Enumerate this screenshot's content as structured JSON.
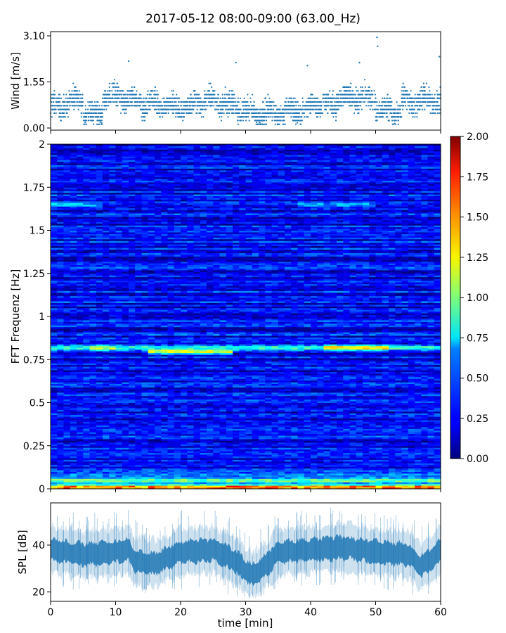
{
  "title": "2017-05-12 08:00-09:00 (63.00_Hz)",
  "chart_data": [
    {
      "type": "scatter",
      "panel": "wind",
      "ylabel": "Wind [m/s]",
      "ylim": [
        0,
        3.1
      ],
      "yticks": [
        0.0,
        1.55,
        3.1
      ],
      "ytick_labels": [
        "0.00",
        "1.55",
        "3.10"
      ],
      "xlim": [
        0,
        60
      ],
      "color": "#1f77b4",
      "segments": [
        {
          "x0": 0,
          "x1": 2,
          "mean": 0.7
        },
        {
          "x0": 2,
          "x1": 5,
          "mean": 0.9
        },
        {
          "x0": 5,
          "x1": 8,
          "mean": 0.5
        },
        {
          "x0": 8,
          "x1": 12,
          "mean": 1.0
        },
        {
          "x0": 12,
          "x1": 14,
          "mean": 0.9
        },
        {
          "x0": 14,
          "x1": 18,
          "mean": 0.8
        },
        {
          "x0": 18,
          "x1": 22,
          "mean": 0.7
        },
        {
          "x0": 22,
          "x1": 27,
          "mean": 0.9
        },
        {
          "x0": 27,
          "x1": 30,
          "mean": 0.7
        },
        {
          "x0": 30,
          "x1": 36,
          "mean": 0.5
        },
        {
          "x0": 36,
          "x1": 40,
          "mean": 0.6
        },
        {
          "x0": 40,
          "x1": 44,
          "mean": 0.8
        },
        {
          "x0": 44,
          "x1": 50,
          "mean": 1.0
        },
        {
          "x0": 50,
          "x1": 54,
          "mean": 0.6
        },
        {
          "x0": 54,
          "x1": 60,
          "mean": 0.9
        }
      ],
      "peaks": [
        {
          "x": 12.0,
          "y": 2.25
        },
        {
          "x": 28.5,
          "y": 2.2
        },
        {
          "x": 39.5,
          "y": 2.1
        },
        {
          "x": 47.5,
          "y": 2.2
        },
        {
          "x": 50.2,
          "y": 3.05
        },
        {
          "x": 50.3,
          "y": 2.75
        },
        {
          "x": 59.8,
          "y": 2.4
        }
      ]
    },
    {
      "type": "heatmap",
      "panel": "spectrogram",
      "ylabel": "FFT Frequenz [Hz]",
      "ylim": [
        0,
        2
      ],
      "yticks": [
        0,
        0.25,
        0.5,
        0.75,
        1,
        1.25,
        1.5,
        1.75,
        2
      ],
      "ytick_labels": [
        "0",
        "0.25",
        "0.5",
        "0.75",
        "1",
        "1.25",
        "1.5",
        "1.75",
        "2"
      ],
      "xlim": [
        0,
        60
      ],
      "colormap": "jet",
      "clim": [
        0,
        2
      ],
      "colorbar_ticks": [
        0,
        0.25,
        0.5,
        0.75,
        1,
        1.25,
        1.5,
        1.75,
        2
      ],
      "colorbar_tick_labels": [
        "0.00",
        "0.25",
        "0.50",
        "0.75",
        "1.00",
        "1.25",
        "1.50",
        "1.75",
        "2.00"
      ],
      "background_level": 0.25,
      "bands": [
        {
          "freq": 0.82,
          "x0": 0,
          "x1": 60,
          "level": 0.95
        },
        {
          "freq": 0.8,
          "x0": 15,
          "x1": 28,
          "level": 1.35
        },
        {
          "freq": 0.82,
          "x0": 42,
          "x1": 52,
          "level": 1.45
        },
        {
          "freq": 0.82,
          "x0": 6,
          "x1": 10,
          "level": 1.3
        },
        {
          "freq": 1.65,
          "x0": 0,
          "x1": 8,
          "level": 0.7
        },
        {
          "freq": 1.65,
          "x0": 38,
          "x1": 50,
          "level": 0.65
        },
        {
          "freq": 0.05,
          "x0": 0,
          "x1": 60,
          "level": 1.1
        },
        {
          "freq": 0.01,
          "x0": 0,
          "x1": 60,
          "level": 1.6
        }
      ]
    },
    {
      "type": "line",
      "panel": "spl",
      "ylabel": "SPL [dB]",
      "xlabel": "time [min]",
      "ylim": [
        16,
        58
      ],
      "yticks": [
        20,
        40
      ],
      "ytick_labels": [
        "20",
        "40"
      ],
      "xlim": [
        0,
        60
      ],
      "xticks": [
        0,
        10,
        20,
        30,
        40,
        50,
        60
      ],
      "xtick_labels": [
        "0",
        "10",
        "20",
        "30",
        "40",
        "50",
        "60"
      ],
      "color": "#1f77b4",
      "envelope": [
        {
          "x": 0,
          "mean": 38
        },
        {
          "x": 5,
          "mean": 36
        },
        {
          "x": 10,
          "mean": 37
        },
        {
          "x": 12,
          "mean": 38
        },
        {
          "x": 13,
          "mean": 33
        },
        {
          "x": 16,
          "mean": 32
        },
        {
          "x": 20,
          "mean": 37
        },
        {
          "x": 25,
          "mean": 38
        },
        {
          "x": 28,
          "mean": 34
        },
        {
          "x": 31,
          "mean": 27
        },
        {
          "x": 33,
          "mean": 31
        },
        {
          "x": 35,
          "mean": 37
        },
        {
          "x": 40,
          "mean": 38
        },
        {
          "x": 45,
          "mean": 39
        },
        {
          "x": 50,
          "mean": 37
        },
        {
          "x": 55,
          "mean": 36
        },
        {
          "x": 57,
          "mean": 31
        },
        {
          "x": 59,
          "mean": 35
        },
        {
          "x": 60,
          "mean": 38
        }
      ]
    }
  ]
}
